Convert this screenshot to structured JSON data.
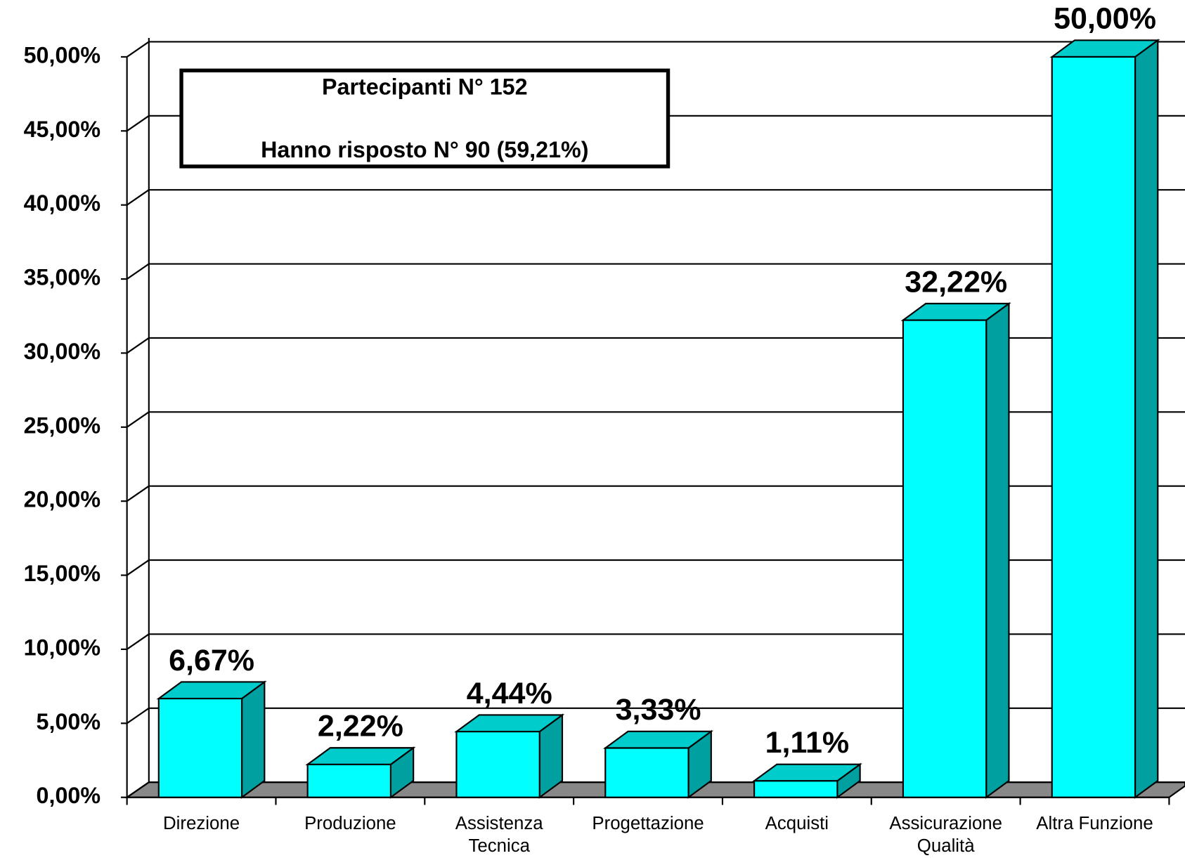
{
  "chart_data": {
    "type": "bar",
    "categories": [
      "Direzione",
      "Produzione",
      "Assistenza Tecnica",
      "Progettazione",
      "Acquisti",
      "Assicurazione Qualità",
      "Altra Funzione"
    ],
    "values": [
      6.67,
      2.22,
      4.44,
      3.33,
      1.11,
      32.22,
      50
    ],
    "value_labels": [
      "6,67%",
      "2,22%",
      "4,44%",
      "3,33%",
      "1,11%",
      "32,22%",
      "50,00%"
    ],
    "color": "#00ffff",
    "ylim": [
      0,
      50
    ],
    "yticks": [
      {
        "value": 0,
        "label": "0,00%"
      },
      {
        "value": 5,
        "label": "5,00%"
      },
      {
        "value": 10,
        "label": "10,00%"
      },
      {
        "value": 15,
        "label": "15,00%"
      },
      {
        "value": 20,
        "label": "20,00%"
      },
      {
        "value": 25,
        "label": "25,00%"
      },
      {
        "value": 30,
        "label": "30,00%"
      },
      {
        "value": 35,
        "label": "35,00%"
      },
      {
        "value": 40,
        "label": "40,00%"
      },
      {
        "value": 45,
        "label": "45,00%"
      },
      {
        "value": 50,
        "label": "50,00%"
      }
    ],
    "grid": true,
    "annotations": [
      "Partecipanti N° 152",
      "Hanno risposto N° 90 (59,21%)"
    ]
  }
}
